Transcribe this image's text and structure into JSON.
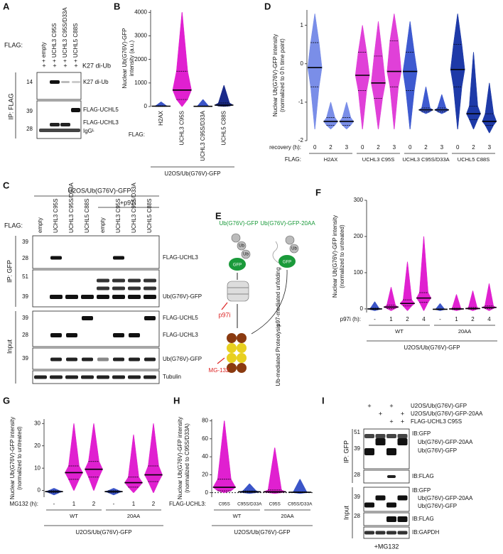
{
  "panel_letters": [
    "A",
    "B",
    "C",
    "D",
    "E",
    "F",
    "G",
    "H",
    "I"
  ],
  "blot_A": {
    "flag_label": "FLAG:",
    "lanes": [
      "+ empty",
      "+ UCHL3 C95S",
      "+ UCHL3 C95S/D33A",
      "+ UCHL5 C88S"
    ],
    "plus": "+",
    "reagent": "K27 di-Ub",
    "ip_label": "IP: FLAG",
    "markers": [
      14,
      39,
      28
    ],
    "bands": [
      "K27 di-Ub",
      "FLAG-UCHL5",
      "FLAG-UCHL3",
      "IgGᴸ"
    ]
  },
  "blot_C": {
    "cell_line": "U2OS/Ub(G76V)-GFP",
    "treatment": "+p97i",
    "flag_label": "FLAG:",
    "lanes": [
      "empty",
      "UCHL3 C95S",
      "UCHL3 C95S/D33A",
      "UCHL5 C88S"
    ],
    "ip_label": "IP: GFP",
    "input_label": "Input",
    "markers": [
      39,
      28,
      51,
      39,
      39,
      28,
      39
    ],
    "bands": [
      "FLAG-UCHL3",
      "Ub(G76V)-GFP",
      "FLAG-UCHL5",
      "FLAG-UCHL3",
      "Ub(G76V)-GFP",
      "Tubulin"
    ]
  },
  "diagram_E": {
    "substrate1": "Ub(G76V)-GFP",
    "substrate2": "Ub(G76V)-GFP-20AA",
    "ub": "Ub",
    "gfp": "GFP",
    "inhibitor1": "p97i",
    "step1": "p97-mediated unfolding",
    "inhibitor2": "MG-132",
    "step2": "Ub-mediated Proteolysis"
  },
  "blot_I": {
    "conditions": [
      "U2OS/Ub(G76V)-GFP",
      "U2OS/Ub(G76V)-GFP-20AA",
      "FLAG-UCHL3 C95S"
    ],
    "plus": "+",
    "ip_label": "IP: GFP",
    "input_label": "Input",
    "markers": [
      51,
      39,
      28,
      39,
      28
    ],
    "blots": [
      "IB:GFP",
      "IB:FLAG",
      "IB:GFP",
      "IB:FLAG",
      "IB:GAPDH"
    ],
    "species": [
      "Ub(G76V)-GFP-20AA",
      "Ub(G76V)-GFP"
    ],
    "treatment": "+MG132"
  },
  "chart_data": [
    {
      "type": "violin",
      "ylabel": [
        "Nuclear Ub(G76V)-GFP",
        "intensity (a.u.)"
      ],
      "x_title": "FLAG:",
      "categories": [
        "H2AX",
        "UCHL3 C95S",
        "UCHL3 C95S/D33A",
        "UCHL5 C88S"
      ],
      "footer": "U2OS/Ub(G76V)-GFP",
      "colors": [
        "#3b55c8",
        "#e020d0",
        "#3b55c8",
        "#1a2a8a"
      ],
      "min": [
        0,
        0,
        0,
        0
      ],
      "q1": [
        5,
        300,
        5,
        20
      ],
      "median": [
        15,
        700,
        10,
        60
      ],
      "q3": [
        30,
        1500,
        25,
        150
      ],
      "max": [
        200,
        4000,
        300,
        900
      ],
      "ylim": [
        0,
        4100
      ],
      "yticks": [
        0,
        1000,
        2000,
        3000,
        4000
      ]
    },
    {
      "type": "violin",
      "ylabel": [
        "Nuclear Ub(G76V)-GFP intensity",
        "(normalized to 0 h time point)"
      ],
      "x_title": "recovery (h):",
      "categories": [
        "0",
        "2",
        "3",
        "0",
        "2",
        "3",
        "0",
        "2",
        "3",
        "0",
        "2",
        "3"
      ],
      "group_title": "FLAG:",
      "groups": [
        "H2AX",
        "UCHL3 C95S",
        "UCHL3 C95S/D33A",
        "UCHL5 C88S"
      ],
      "colors": [
        "#7a8ee8",
        "#7a8ee8",
        "#7a8ee8",
        "#e040d8",
        "#e040d8",
        "#e040d8",
        "#3e5ad0",
        "#3e5ad0",
        "#3e5ad0",
        "#1e3aa8",
        "#1e3aa8",
        "#1e3aa8"
      ],
      "min": [
        -1.7,
        -1.7,
        -1.7,
        -1.7,
        -1.7,
        -1.7,
        -1.7,
        -1.3,
        -1.3,
        -1.7,
        -1.7,
        -1.8
      ],
      "q1": [
        -0.6,
        -1.6,
        -1.6,
        -0.7,
        -0.9,
        -0.6,
        -0.7,
        -1.25,
        -1.25,
        -0.6,
        -1.45,
        -1.6
      ],
      "median": [
        -0.1,
        -1.5,
        -1.5,
        -0.3,
        -0.5,
        -0.2,
        -0.2,
        -1.2,
        -1.2,
        -0.15,
        -1.3,
        -1.5
      ],
      "q3": [
        0.55,
        -1.4,
        -1.4,
        0.3,
        0.2,
        0.6,
        0.3,
        -1.15,
        -1.15,
        0.5,
        -1.1,
        -1.3
      ],
      "max": [
        1.3,
        -1.0,
        -1.0,
        1.0,
        1.1,
        1.3,
        1.1,
        -0.6,
        -0.8,
        1.3,
        0.3,
        -0.5
      ],
      "ylim": [
        -2,
        1.4
      ],
      "yticks": [
        -2,
        -1,
        0,
        1
      ]
    },
    {
      "type": "violin",
      "ylabel": [
        "Nuclear Ub(G76V)-GFP intensity",
        "(normalized to untreated)"
      ],
      "x_title": "p97i (h):",
      "categories": [
        "-",
        "1",
        "2",
        "4",
        "-",
        "1",
        "2",
        "4"
      ],
      "groups": [
        "WT",
        "20AA"
      ],
      "footer": "U2OS/Ub(G76V)-GFP",
      "colors": [
        "#3b55c8",
        "#e020d0",
        "#e020d0",
        "#e020d0",
        "#3b55c8",
        "#e020d0",
        "#e020d0",
        "#e020d0"
      ],
      "min": [
        -5,
        -5,
        -5,
        -5,
        -5,
        -5,
        -5,
        -5
      ],
      "q1": [
        -2,
        1,
        8,
        18,
        -2,
        -2,
        -1,
        1
      ],
      "median": [
        0,
        5,
        15,
        30,
        -1,
        0,
        1,
        4
      ],
      "q3": [
        2,
        10,
        25,
        45,
        0,
        2,
        4,
        8
      ],
      "max": [
        20,
        60,
        130,
        200,
        15,
        40,
        50,
        70
      ],
      "ylim": [
        -10,
        300
      ],
      "yticks": [
        0,
        100,
        200,
        300
      ]
    },
    {
      "type": "violin",
      "ylabel": [
        "Nuclear Ub(G76V)-GFP intensity",
        "(normalized to untreated)"
      ],
      "x_title": "MG132 (h):",
      "categories": [
        "-",
        "1",
        "2",
        "-",
        "1",
        "2"
      ],
      "groups": [
        "WT",
        "20AA"
      ],
      "footer": "U2OS/Ub(G76V)-GFP",
      "colors": [
        "#3b55c8",
        "#e020d0",
        "#e020d0",
        "#3b55c8",
        "#e020d0",
        "#e020d0"
      ],
      "min": [
        -2,
        0,
        0,
        -2,
        -1,
        -1
      ],
      "q1": [
        -1,
        5,
        6,
        -1,
        1.5,
        4
      ],
      "median": [
        -0.5,
        8,
        9.5,
        -0.5,
        3.5,
        7
      ],
      "q3": [
        0,
        11,
        13,
        0,
        6,
        11
      ],
      "max": [
        1,
        30,
        30,
        1,
        25,
        30
      ],
      "ylim": [
        -3,
        32
      ],
      "yticks": [
        0,
        10,
        20,
        30
      ]
    },
    {
      "type": "violin",
      "ylabel": [
        "Nuclear Ub(G76V)-GFP intensity",
        "(normalized to C95S/D33A)"
      ],
      "x_title": "FLAG-UCHL3:",
      "categories": [
        "C95S",
        "C95S/D33A",
        "C95S",
        "C95S/D33A"
      ],
      "groups": [
        "WT",
        "20AA"
      ],
      "footer": "U2OS/Ub(G76V)-GFP",
      "colors": [
        "#e020d0",
        "#3b55c8",
        "#e020d0",
        "#3b55c8"
      ],
      "min": [
        0,
        -1,
        -1,
        -1
      ],
      "q1": [
        2,
        0,
        0,
        0
      ],
      "median": [
        6,
        1,
        1,
        0.5
      ],
      "q3": [
        15,
        2,
        3,
        1
      ],
      "max": [
        80,
        10,
        50,
        15
      ],
      "ylim": [
        -5,
        82
      ],
      "yticks": [
        0,
        20,
        40,
        60,
        80
      ]
    }
  ]
}
